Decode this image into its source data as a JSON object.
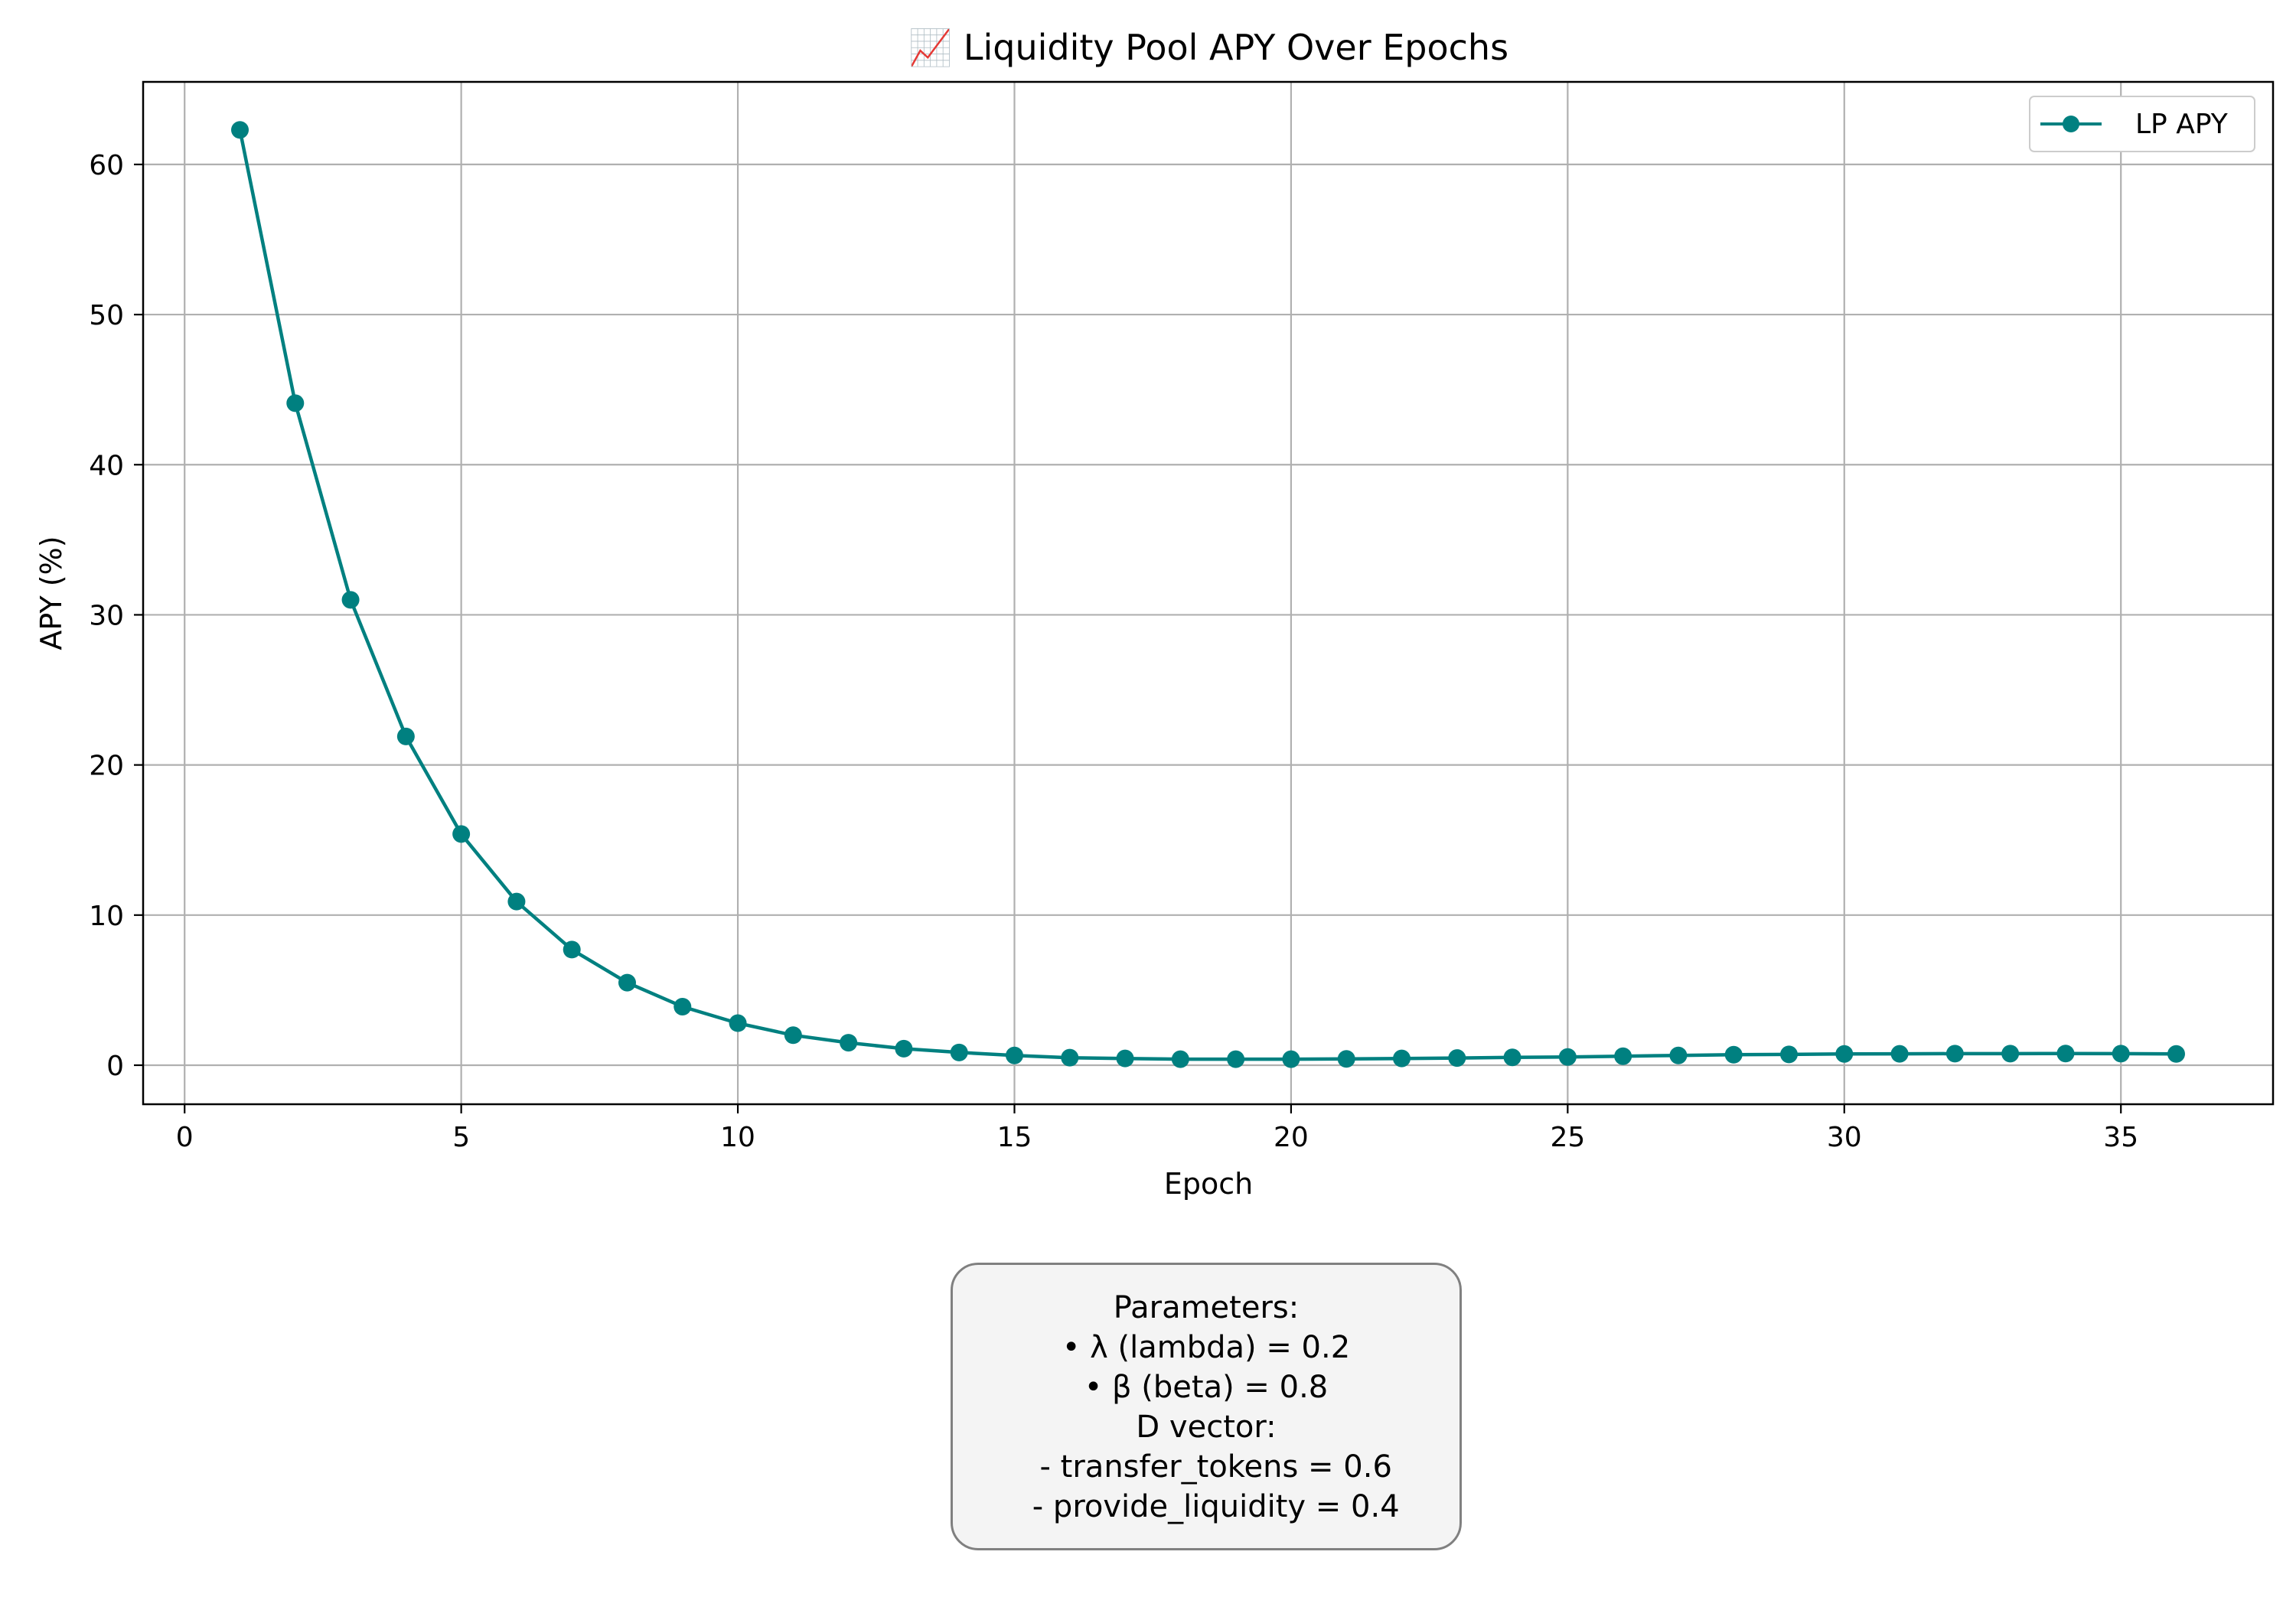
{
  "chart_data": {
    "type": "line",
    "title": "📈 Liquidity Pool APY Over Epochs",
    "xlabel": "Epoch",
    "ylabel": "APY (%)",
    "xlim": [
      -0.75,
      37.75
    ],
    "ylim": [
      -2.6,
      65.5
    ],
    "xticks": [
      0,
      5,
      10,
      15,
      20,
      25,
      30,
      35
    ],
    "yticks": [
      0,
      10,
      20,
      30,
      40,
      50,
      60
    ],
    "grid": true,
    "legend_position": "top-right",
    "series": [
      {
        "name": "LP APY",
        "color": "#008080",
        "x": [
          1,
          2,
          3,
          4,
          5,
          6,
          7,
          8,
          9,
          10,
          11,
          12,
          13,
          14,
          15,
          16,
          17,
          18,
          19,
          20,
          21,
          22,
          23,
          24,
          25,
          26,
          27,
          28,
          29,
          30,
          31,
          32,
          33,
          34,
          35,
          36
        ],
        "y": [
          62.3,
          44.1,
          31.0,
          21.9,
          15.4,
          10.9,
          7.7,
          5.5,
          3.9,
          2.8,
          2.0,
          1.5,
          1.1,
          0.85,
          0.65,
          0.5,
          0.45,
          0.4,
          0.4,
          0.4,
          0.42,
          0.45,
          0.48,
          0.52,
          0.55,
          0.6,
          0.65,
          0.7,
          0.72,
          0.75,
          0.76,
          0.77,
          0.77,
          0.78,
          0.77,
          0.75
        ]
      }
    ]
  },
  "parameters_box": {
    "lines": [
      "Parameters:",
      "• λ (lambda) = 0.2",
      "• β (beta) = 0.8",
      "D vector:",
      "  - transfer_tokens = 0.6",
      "  - provide_liquidity = 0.4"
    ]
  }
}
